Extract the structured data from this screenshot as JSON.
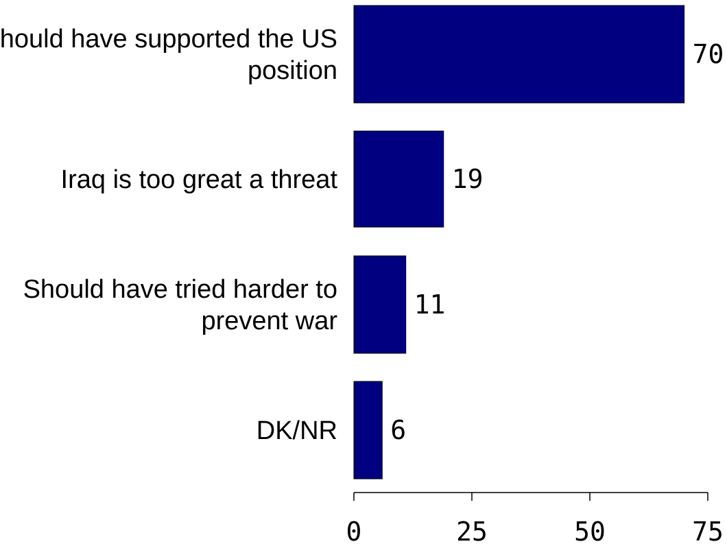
{
  "chart_data": {
    "type": "bar",
    "orientation": "horizontal",
    "categories": [
      [
        "Should have supported the US",
        "position"
      ],
      [
        "Iraq is too great a threat"
      ],
      [
        "Should have tried harder to",
        "prevent war"
      ],
      [
        "DK/NR"
      ]
    ],
    "values": [
      70,
      19,
      11,
      6
    ],
    "value_labels": [
      "70",
      "19",
      "11",
      "6"
    ],
    "xlim": [
      0,
      75
    ],
    "xticks": [
      0,
      25,
      50,
      75
    ],
    "xtick_labels": [
      "0",
      "25",
      "50",
      "75"
    ],
    "title": "",
    "xlabel": "",
    "ylabel": "",
    "grid": false,
    "legend": "none",
    "colors": {
      "bar_fill": "#000080",
      "bar_stroke": "#000000",
      "text": "#000000",
      "background": "#ffffff"
    }
  }
}
